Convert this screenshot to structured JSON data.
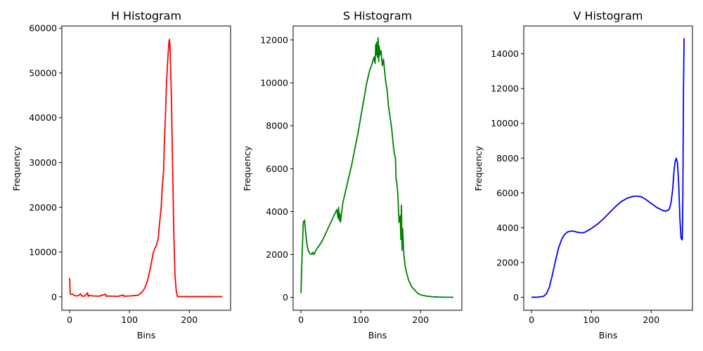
{
  "chart_data": [
    {
      "type": "line",
      "title": "H Histogram",
      "xlabel": "Bins",
      "ylabel": "Frequency",
      "xlim": [
        -13,
        269
      ],
      "ylim": [
        -3000,
        60500
      ],
      "xticks": [
        0,
        100,
        200
      ],
      "yticks": [
        0,
        10000,
        20000,
        30000,
        40000,
        50000,
        60000
      ],
      "color": "#ff0000",
      "series": [
        {
          "x": [
            0,
            1,
            2,
            5,
            8,
            12,
            15,
            18,
            20,
            25,
            30,
            31,
            32,
            40,
            50,
            60,
            61,
            62,
            70,
            80,
            90,
            91,
            92,
            100,
            110,
            115,
            120,
            125,
            130,
            135,
            140,
            143,
            145,
            148,
            150,
            153,
            155,
            157,
            158,
            160,
            162,
            164,
            166,
            167,
            168,
            170,
            172,
            174,
            176,
            178,
            180,
            185,
            190,
            200,
            220,
            240,
            255
          ],
          "y": [
            4200,
            800,
            500,
            600,
            300,
            200,
            300,
            700,
            200,
            150,
            900,
            100,
            300,
            200,
            150,
            600,
            100,
            200,
            150,
            100,
            400,
            100,
            150,
            200,
            300,
            400,
            900,
            1800,
            3500,
            6500,
            10000,
            11000,
            11500,
            13000,
            16000,
            20000,
            25000,
            28000,
            33000,
            40000,
            48000,
            53000,
            57000,
            57500,
            55000,
            45000,
            30000,
            15000,
            5000,
            1500,
            100,
            50,
            50,
            50,
            50,
            50,
            50
          ]
        }
      ]
    },
    {
      "type": "line",
      "title": "S Histogram",
      "xlabel": "Bins",
      "ylabel": "Frequency",
      "xlim": [
        -13,
        269
      ],
      "ylim": [
        -600,
        12650
      ],
      "xticks": [
        0,
        100,
        200
      ],
      "yticks": [
        0,
        2000,
        4000,
        6000,
        8000,
        10000,
        12000
      ],
      "color": "#008000",
      "series": [
        {
          "x": [
            0,
            2,
            4,
            6,
            8,
            10,
            12,
            15,
            18,
            20,
            22,
            25,
            30,
            35,
            40,
            45,
            50,
            55,
            60,
            62,
            63,
            64,
            65,
            66,
            70,
            75,
            80,
            85,
            90,
            95,
            100,
            105,
            110,
            115,
            118,
            120,
            122,
            124,
            125,
            126,
            127,
            128,
            129,
            130,
            131,
            132,
            134,
            136,
            138,
            140,
            142,
            144,
            146,
            148,
            150,
            152,
            154,
            156,
            158,
            159,
            160,
            162,
            164,
            166,
            167,
            168,
            169,
            170,
            172,
            174,
            176,
            178,
            180,
            185,
            190,
            195,
            200,
            210,
            220,
            230,
            240,
            255
          ],
          "y": [
            200,
            2000,
            3500,
            3600,
            3000,
            2500,
            2200,
            2050,
            2000,
            2100,
            2000,
            2200,
            2400,
            2600,
            2900,
            3200,
            3500,
            3800,
            4100,
            3700,
            4200,
            3600,
            3900,
            3500,
            4400,
            5000,
            5600,
            6200,
            6900,
            7600,
            8400,
            9200,
            10000,
            10600,
            10800,
            11000,
            11200,
            10900,
            11800,
            11300,
            11900,
            11200,
            12100,
            11000,
            11700,
            11300,
            11500,
            10800,
            11100,
            10500,
            10000,
            9700,
            9000,
            8600,
            8200,
            7800,
            7200,
            6700,
            6500,
            5500,
            5400,
            4800,
            3500,
            3800,
            2700,
            4300,
            2200,
            3200,
            2000,
            1500,
            1200,
            1000,
            800,
            500,
            350,
            200,
            120,
            60,
            30,
            15,
            10,
            5
          ]
        }
      ]
    },
    {
      "type": "line",
      "title": "V Histogram",
      "xlabel": "Bins",
      "ylabel": "Frequency",
      "xlim": [
        -13,
        269
      ],
      "ylim": [
        -750,
        15600
      ],
      "xticks": [
        0,
        100,
        200
      ],
      "yticks": [
        0,
        2000,
        4000,
        6000,
        8000,
        10000,
        12000,
        14000
      ],
      "color": "#0000ff",
      "series": [
        {
          "x": [
            0,
            10,
            20,
            25,
            30,
            35,
            40,
            45,
            50,
            55,
            60,
            65,
            70,
            75,
            80,
            85,
            90,
            95,
            100,
            110,
            120,
            130,
            140,
            150,
            160,
            170,
            175,
            180,
            185,
            190,
            200,
            210,
            220,
            225,
            230,
            233,
            236,
            238,
            240,
            242,
            244,
            246,
            248,
            250,
            252,
            253,
            254,
            255
          ],
          "y": [
            0,
            0,
            50,
            200,
            600,
            1300,
            2100,
            2800,
            3300,
            3600,
            3750,
            3800,
            3800,
            3750,
            3720,
            3700,
            3750,
            3850,
            3950,
            4200,
            4500,
            4850,
            5200,
            5500,
            5700,
            5800,
            5820,
            5800,
            5750,
            5650,
            5400,
            5150,
            4980,
            4950,
            5050,
            5400,
            6200,
            7200,
            7800,
            8000,
            7700,
            6500,
            4500,
            3400,
            3300,
            6000,
            12000,
            14900
          ]
        }
      ]
    }
  ]
}
